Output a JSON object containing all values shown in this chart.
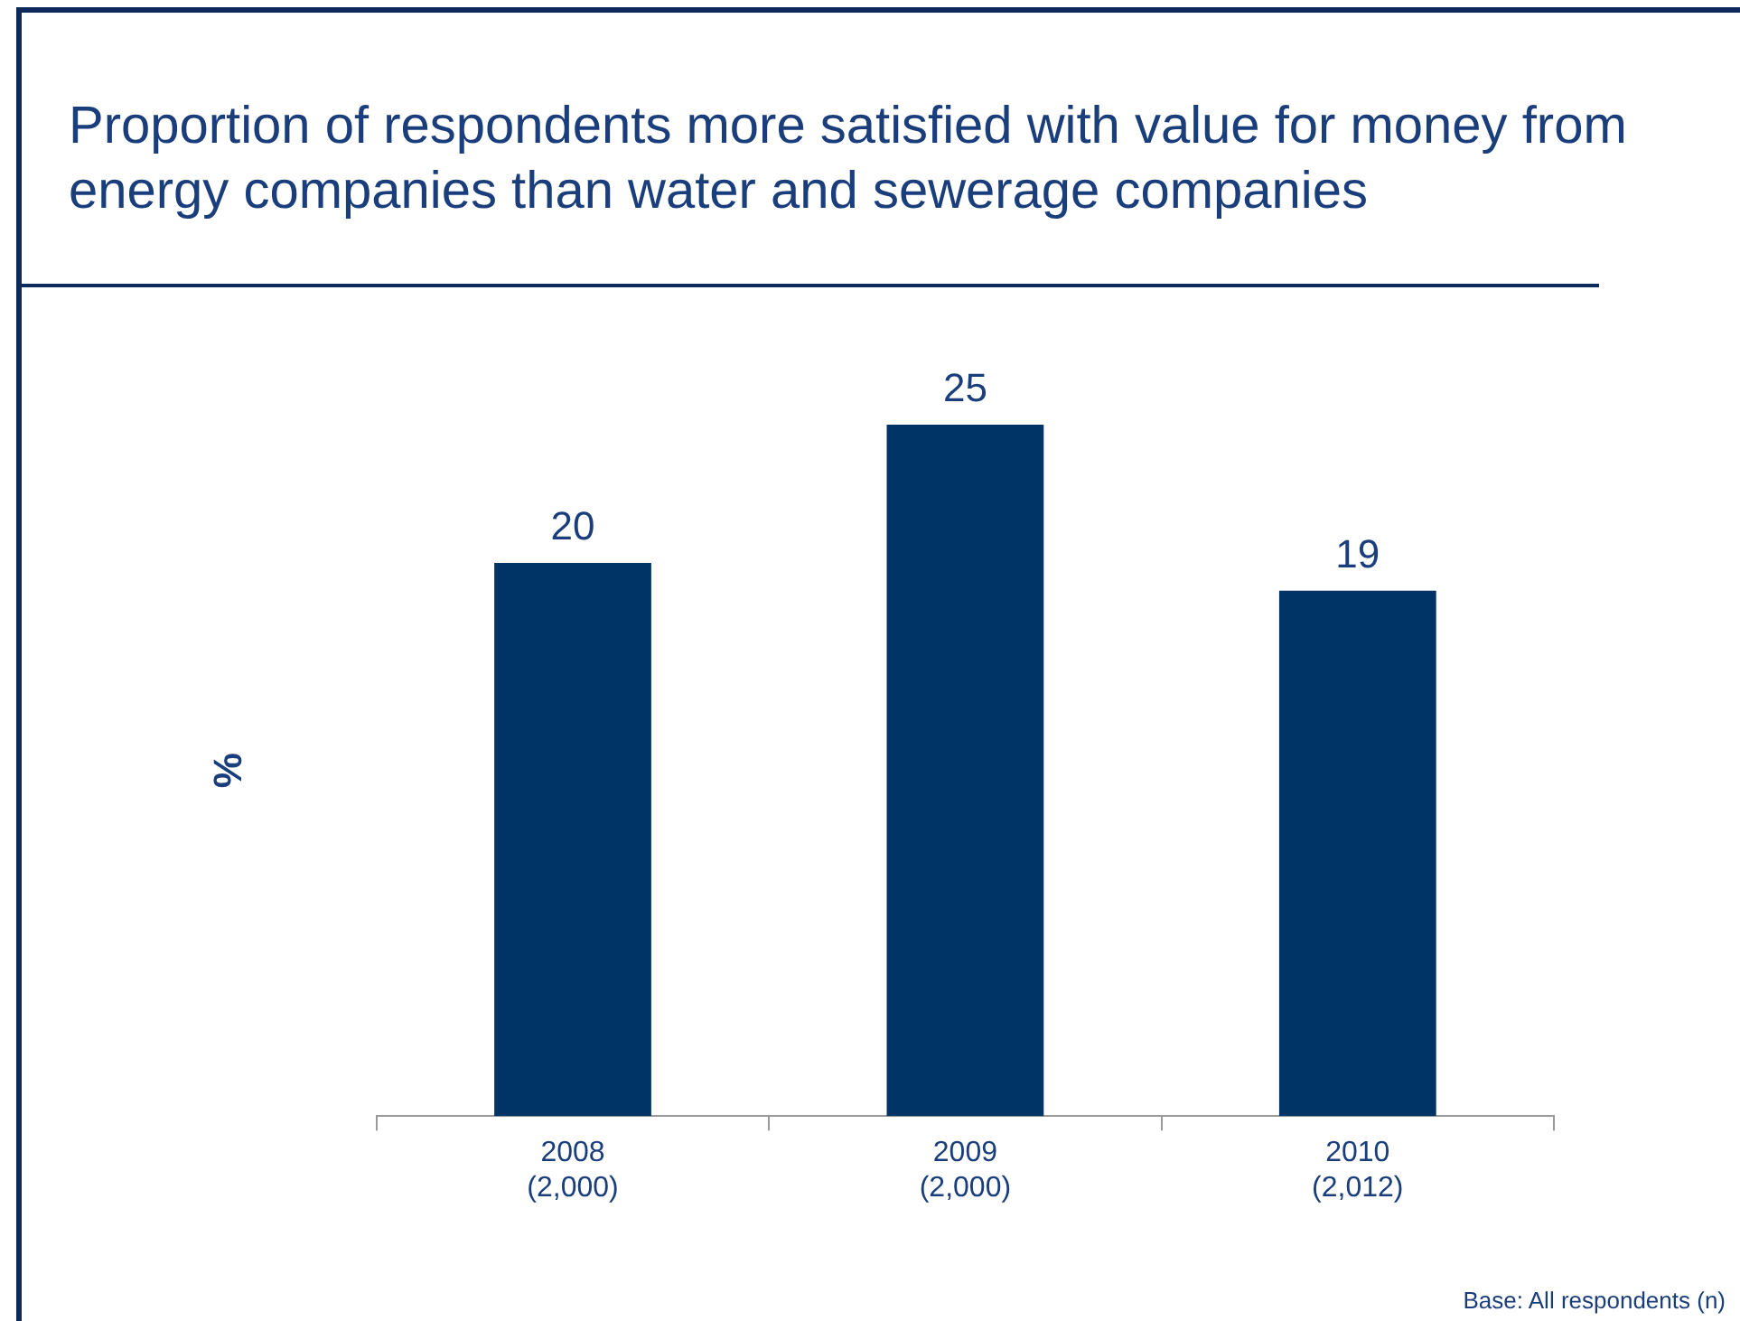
{
  "chart_data": {
    "type": "bar",
    "title": "Proportion of respondents more satisfied with value for money from energy companies than water and sewerage companies",
    "ylabel": "%",
    "categories": [
      "2008\n(2,000)",
      "2009\n(2,000)",
      "2010\n(2,012)"
    ],
    "values": [
      20,
      25,
      19
    ],
    "color": "#003366",
    "data_labels": true,
    "annotations": [
      "Base: All respondents (n)"
    ]
  }
}
